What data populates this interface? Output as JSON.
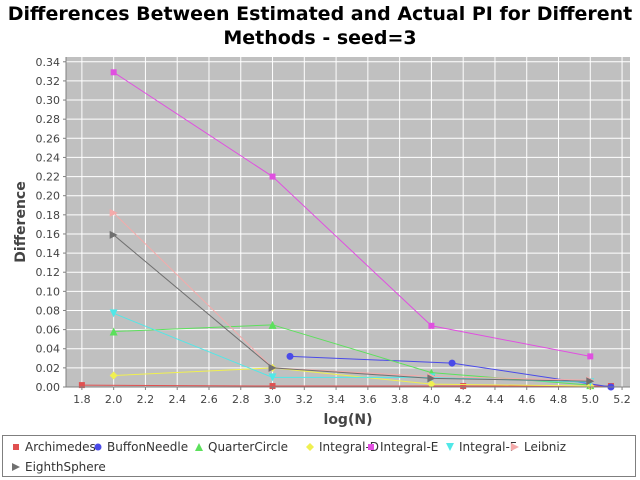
{
  "chart_data": {
    "type": "line",
    "title": "Differences Between Estimated and Actual PI for Different Methods - seed=3",
    "title_lines": [
      "Differences Between Estimated and Actual PI for Different",
      "Methods - seed=3"
    ],
    "xlabel": "log(N)",
    "ylabel": "Difference",
    "xlim": [
      1.7,
      5.25
    ],
    "ylim": [
      0.0,
      0.345
    ],
    "x_ticks": [
      "1.8",
      "2.0",
      "2.2",
      "2.4",
      "2.6",
      "2.8",
      "3.0",
      "3.2",
      "3.4",
      "3.6",
      "3.8",
      "4.0",
      "4.2",
      "4.4",
      "4.6",
      "4.8",
      "5.0",
      "5.2"
    ],
    "y_ticks": [
      "0.00",
      "0.02",
      "0.04",
      "0.06",
      "0.08",
      "0.10",
      "0.12",
      "0.14",
      "0.16",
      "0.18",
      "0.20",
      "0.22",
      "0.24",
      "0.26",
      "0.28",
      "0.30",
      "0.32",
      "0.34"
    ],
    "grid": true,
    "legend_position": "bottom",
    "series": [
      {
        "name": "Archimedes",
        "color": "#e05050",
        "marker": "square",
        "x": [
          1.8,
          3.0,
          4.2,
          5.13
        ],
        "y": [
          0.002,
          0.001,
          0.001,
          0.001
        ]
      },
      {
        "name": "BuffonNeedle",
        "color": "#4a4ae8",
        "marker": "circle",
        "x": [
          3.11,
          4.13,
          5.13
        ],
        "y": [
          0.032,
          0.025,
          0.0
        ]
      },
      {
        "name": "QuarterCircle",
        "color": "#5ce05c",
        "marker": "triangle-up",
        "x": [
          2.0,
          3.0,
          4.0,
          5.0
        ],
        "y": [
          0.058,
          0.065,
          0.015,
          0.002
        ]
      },
      {
        "name": "Integral-D",
        "color": "#f0f050",
        "marker": "diamond",
        "x": [
          2.0,
          3.0,
          4.0,
          5.0
        ],
        "y": [
          0.012,
          0.02,
          0.003,
          0.001
        ]
      },
      {
        "name": "Integral-E",
        "color": "#e050e0",
        "marker": "square",
        "x": [
          2.0,
          3.0,
          4.0,
          5.0
        ],
        "y": [
          0.329,
          0.22,
          0.064,
          0.032
        ]
      },
      {
        "name": "Integral-F",
        "color": "#50e8e8",
        "marker": "triangle-down",
        "x": [
          2.0,
          3.0,
          4.0,
          5.0
        ],
        "y": [
          0.077,
          0.01,
          0.01,
          0.005
        ]
      },
      {
        "name": "Leibniz",
        "color": "#f4aaaa",
        "marker": "triangle-right",
        "x": [
          2.0,
          3.0,
          4.0,
          5.0
        ],
        "y": [
          0.182,
          0.02,
          0.011,
          0.007
        ]
      },
      {
        "name": "EighthSphere",
        "color": "#707070",
        "marker": "triangle-right",
        "x": [
          2.0,
          3.0,
          4.0,
          5.0
        ],
        "y": [
          0.159,
          0.02,
          0.009,
          0.006
        ]
      }
    ]
  }
}
